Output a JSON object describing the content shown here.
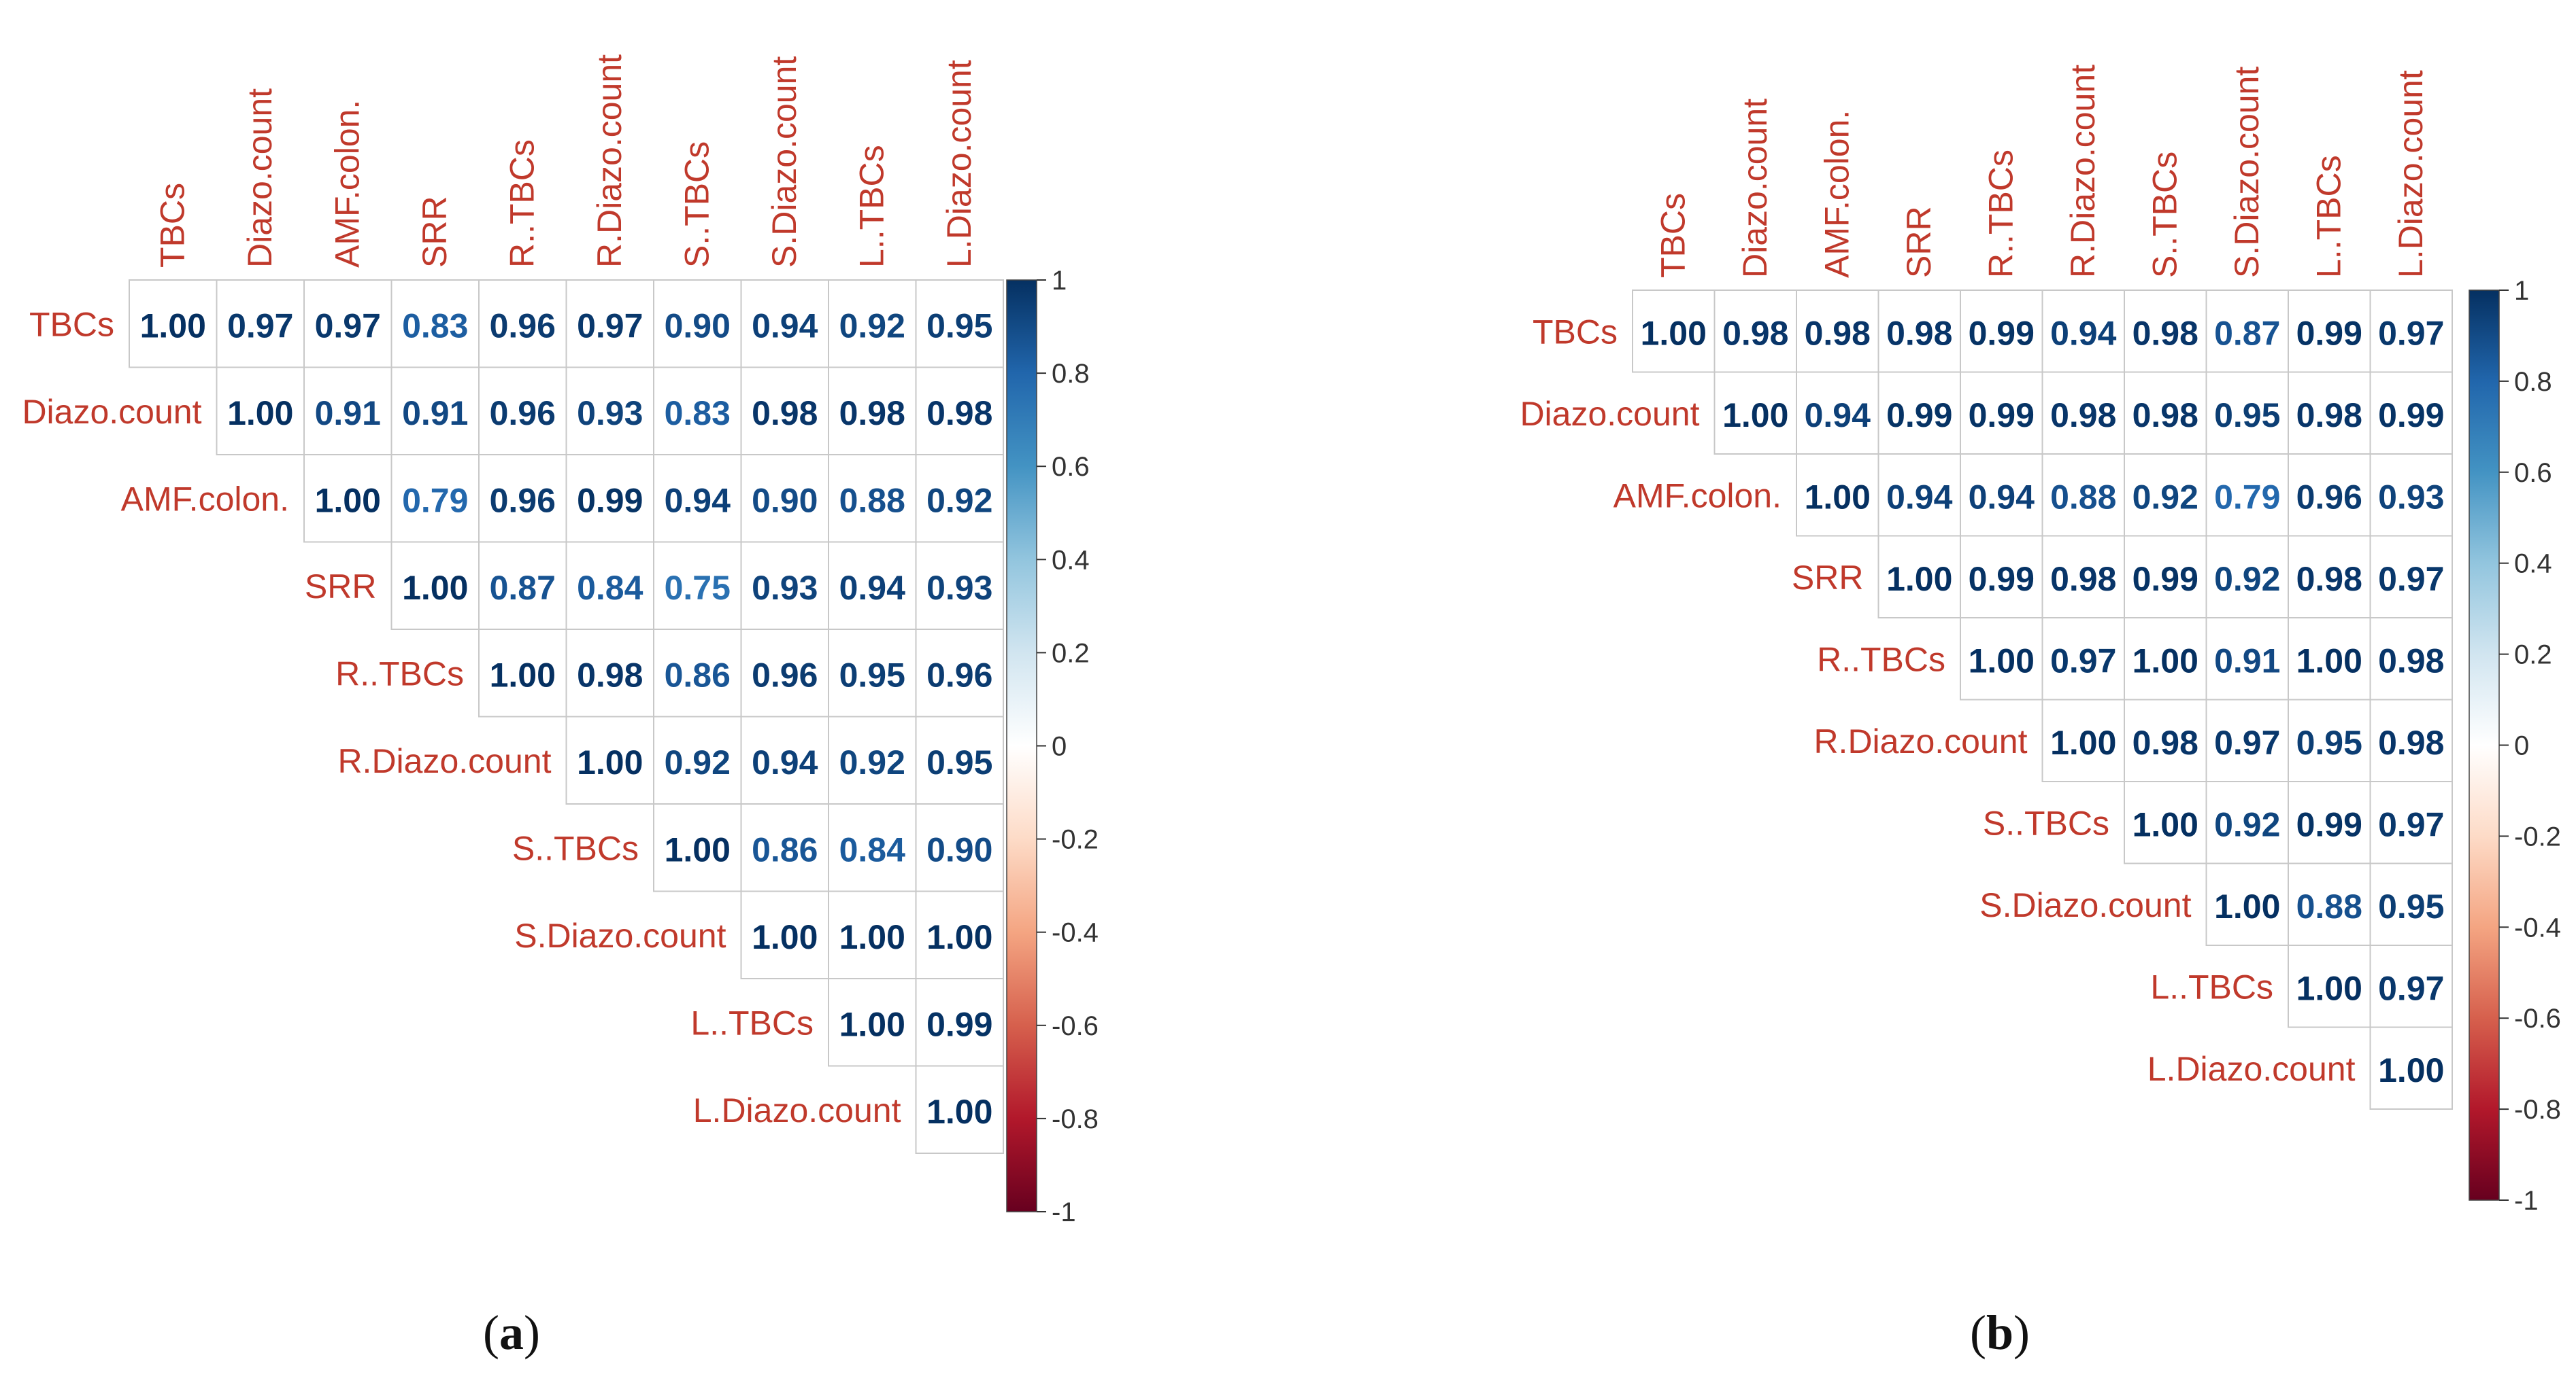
{
  "chart_data": [
    {
      "type": "heatmap",
      "panel": "a",
      "caption_letter": "a",
      "caption": "(a)",
      "variables": [
        "TBCs",
        "Diazo.count",
        "AMF.colon.",
        "SRR",
        "R..TBCs",
        "R.Diazo.count",
        "S..TBCs",
        "S.Diazo.count",
        "L..TBCs",
        "L.Diazo.count"
      ],
      "matrix_upper": [
        [
          1.0,
          0.97,
          0.97,
          0.83,
          0.96,
          0.97,
          0.9,
          0.94,
          0.92,
          0.95
        ],
        [
          1.0,
          0.91,
          0.91,
          0.96,
          0.93,
          0.83,
          0.98,
          0.98,
          0.98
        ],
        [
          1.0,
          0.79,
          0.96,
          0.99,
          0.94,
          0.9,
          0.88,
          0.92
        ],
        [
          1.0,
          0.87,
          0.84,
          0.75,
          0.93,
          0.94,
          0.93
        ],
        [
          1.0,
          0.98,
          0.86,
          0.96,
          0.95,
          0.96
        ],
        [
          1.0,
          0.92,
          0.94,
          0.92,
          0.95
        ],
        [
          1.0,
          0.86,
          0.84,
          0.9
        ],
        [
          1.0,
          1.0,
          1.0
        ],
        [
          1.0,
          0.99
        ],
        [
          1.0
        ]
      ],
      "colorbar": {
        "ticks": [
          "1",
          "0.8",
          "0.6",
          "0.4",
          "0.2",
          "0",
          "-0.2",
          "-0.4",
          "-0.6",
          "-0.8",
          "-1"
        ],
        "range": [
          -1,
          1
        ]
      },
      "colors": {
        "low": "#67001f",
        "mid": "#ffffff",
        "high": "#053061",
        "label": "#c0392b"
      }
    },
    {
      "type": "heatmap",
      "panel": "b",
      "caption_letter": "b",
      "caption": "(b)",
      "variables": [
        "TBCs",
        "Diazo.count",
        "AMF.colon.",
        "SRR",
        "R..TBCs",
        "R.Diazo.count",
        "S..TBCs",
        "S.Diazo.count",
        "L..TBCs",
        "L.Diazo.count"
      ],
      "matrix_upper": [
        [
          1.0,
          0.98,
          0.98,
          0.98,
          0.99,
          0.94,
          0.98,
          0.87,
          0.99,
          0.97
        ],
        [
          1.0,
          0.94,
          0.99,
          0.99,
          0.98,
          0.98,
          0.95,
          0.98,
          0.99
        ],
        [
          1.0,
          0.94,
          0.94,
          0.88,
          0.92,
          0.79,
          0.96,
          0.93
        ],
        [
          1.0,
          0.99,
          0.98,
          0.99,
          0.92,
          0.98,
          0.97
        ],
        [
          1.0,
          0.97,
          1.0,
          0.91,
          1.0,
          0.98
        ],
        [
          1.0,
          0.98,
          0.97,
          0.95,
          0.98
        ],
        [
          1.0,
          0.92,
          0.99,
          0.97
        ],
        [
          1.0,
          0.88,
          0.95
        ],
        [
          1.0,
          0.97
        ],
        [
          1.0
        ]
      ],
      "colorbar": {
        "ticks": [
          "1",
          "0.8",
          "0.6",
          "0.4",
          "0.2",
          "0",
          "-0.2",
          "-0.4",
          "-0.6",
          "-0.8",
          "-1"
        ],
        "range": [
          -1,
          1
        ]
      },
      "colors": {
        "low": "#67001f",
        "mid": "#ffffff",
        "high": "#053061",
        "label": "#c0392b"
      }
    }
  ]
}
